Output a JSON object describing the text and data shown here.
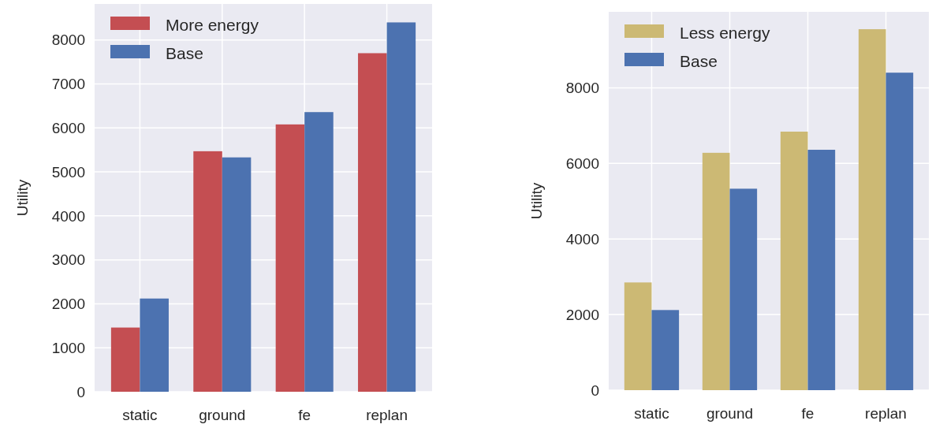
{
  "chart_data": [
    {
      "type": "bar",
      "ylabel": "Utility",
      "categories": [
        "static",
        "ground",
        "fe",
        "replan"
      ],
      "ylim": [
        0,
        8820
      ],
      "yticks": [
        0,
        1000,
        2000,
        3000,
        4000,
        5000,
        6000,
        7000,
        8000
      ],
      "grid": true,
      "legend": "top left",
      "series": [
        {
          "name": "More energy",
          "color": "#c44e52",
          "values": [
            1460,
            5470,
            6080,
            7700
          ]
        },
        {
          "name": "Base",
          "color": "#4c72b0",
          "values": [
            2120,
            5330,
            6360,
            8400
          ]
        }
      ]
    },
    {
      "type": "bar",
      "ylabel": "Utility",
      "categories": [
        "static",
        "ground",
        "fe",
        "replan"
      ],
      "ylim": [
        0,
        10010
      ],
      "yticks": [
        0,
        2000,
        4000,
        6000,
        8000
      ],
      "grid": true,
      "legend": "top left",
      "series": [
        {
          "name": "Less energy",
          "color": "#ccb974",
          "values": [
            2850,
            6280,
            6840,
            9550
          ]
        },
        {
          "name": "Base",
          "color": "#4c72b0",
          "values": [
            2120,
            5330,
            6360,
            8400
          ]
        }
      ]
    }
  ]
}
